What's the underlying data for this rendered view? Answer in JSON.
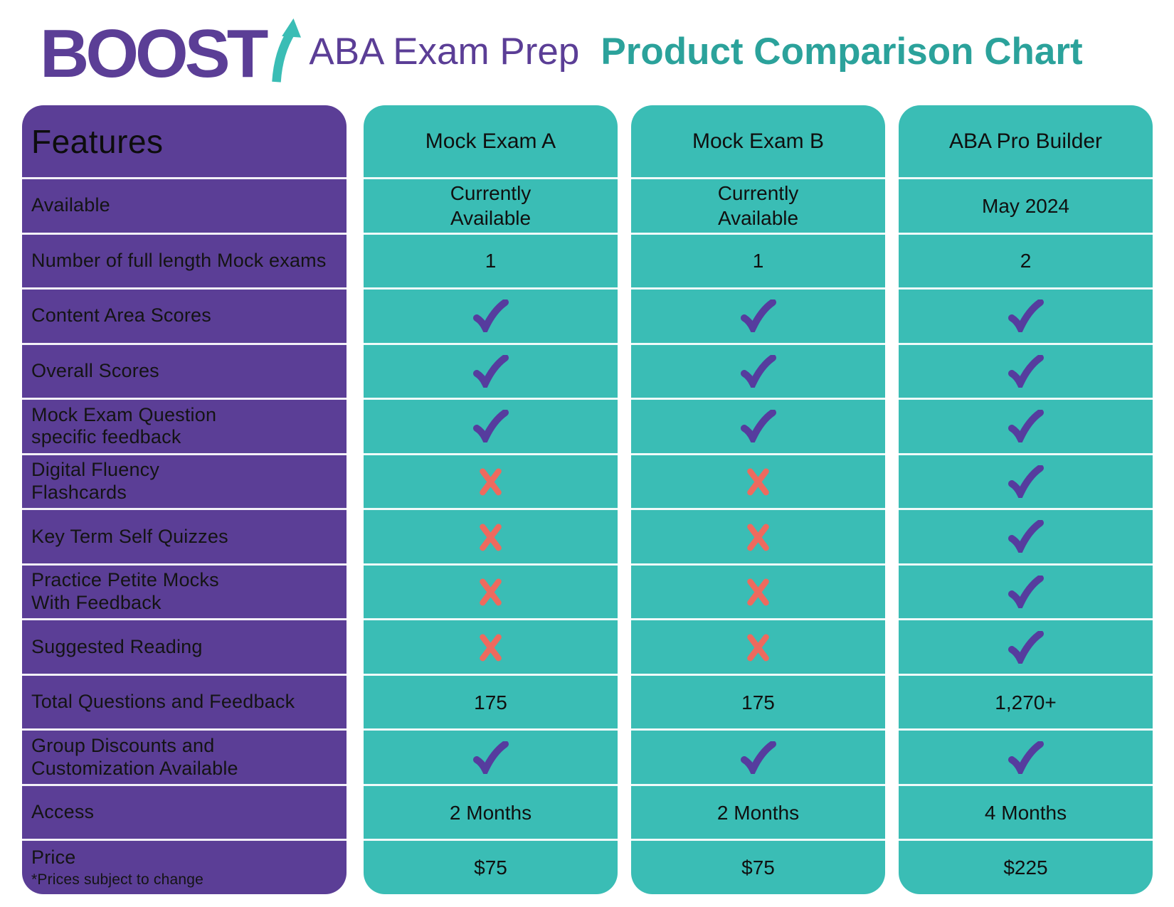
{
  "header": {
    "logo_text": "BOOST",
    "logo_arrow_icon": "up-arrow-icon",
    "subtitle": "ABA Exam Prep",
    "title": "Product Comparison Chart"
  },
  "colors": {
    "brand_purple": "#5b3e96",
    "brand_teal": "#3abdb5",
    "title_teal": "#2ba29b",
    "check_purple": "#563c9e",
    "cross_coral": "#ee6a5e",
    "text_black": "#141414"
  },
  "table": {
    "features_header": "Features",
    "products": [
      "Mock Exam A",
      "Mock Exam B",
      "ABA Pro Builder"
    ],
    "rows": [
      {
        "feature": "Available",
        "cells": [
          {
            "type": "text",
            "value": "Currently\nAvailable"
          },
          {
            "type": "text",
            "value": "Currently\nAvailable"
          },
          {
            "type": "text",
            "value": "May 2024"
          }
        ]
      },
      {
        "feature": "Number of full length Mock exams",
        "cells": [
          {
            "type": "text",
            "value": "1"
          },
          {
            "type": "text",
            "value": "1"
          },
          {
            "type": "text",
            "value": "2"
          }
        ]
      },
      {
        "feature": "Content Area Scores",
        "cells": [
          {
            "type": "check"
          },
          {
            "type": "check"
          },
          {
            "type": "check"
          }
        ]
      },
      {
        "feature": "Overall Scores",
        "cells": [
          {
            "type": "check"
          },
          {
            "type": "check"
          },
          {
            "type": "check"
          }
        ]
      },
      {
        "feature": "Mock Exam Question\nspecific feedback",
        "cells": [
          {
            "type": "check"
          },
          {
            "type": "check"
          },
          {
            "type": "check"
          }
        ]
      },
      {
        "feature": "Digital Fluency\nFlashcards",
        "cells": [
          {
            "type": "cross"
          },
          {
            "type": "cross"
          },
          {
            "type": "check"
          }
        ]
      },
      {
        "feature": "Key Term Self Quizzes",
        "cells": [
          {
            "type": "cross"
          },
          {
            "type": "cross"
          },
          {
            "type": "check"
          }
        ]
      },
      {
        "feature": "Practice Petite Mocks\nWith Feedback",
        "cells": [
          {
            "type": "cross"
          },
          {
            "type": "cross"
          },
          {
            "type": "check"
          }
        ]
      },
      {
        "feature": "Suggested Reading",
        "cells": [
          {
            "type": "cross"
          },
          {
            "type": "cross"
          },
          {
            "type": "check"
          }
        ]
      },
      {
        "feature": "Total Questions and Feedback",
        "cells": [
          {
            "type": "text",
            "value": "175"
          },
          {
            "type": "text",
            "value": "175"
          },
          {
            "type": "text",
            "value": "1,270+"
          }
        ]
      },
      {
        "feature": "Group Discounts and\nCustomization Available",
        "cells": [
          {
            "type": "check"
          },
          {
            "type": "check"
          },
          {
            "type": "check"
          }
        ]
      },
      {
        "feature": "Access",
        "cells": [
          {
            "type": "text",
            "value": "2 Months"
          },
          {
            "type": "text",
            "value": "2 Months"
          },
          {
            "type": "text",
            "value": "4 Months"
          }
        ]
      },
      {
        "feature": "Price",
        "note": "*Prices subject to change",
        "cells": [
          {
            "type": "text",
            "value": "$75"
          },
          {
            "type": "text",
            "value": "$75"
          },
          {
            "type": "text",
            "value": "$225"
          }
        ]
      }
    ]
  },
  "chart_data": {
    "type": "table",
    "title": "BOOST ABA Exam Prep Product Comparison Chart",
    "columns": [
      "Features",
      "Mock Exam A",
      "Mock Exam B",
      "ABA Pro Builder"
    ],
    "rows": [
      [
        "Available",
        "Currently Available",
        "Currently Available",
        "May 2024"
      ],
      [
        "Number of full length Mock exams",
        "1",
        "1",
        "2"
      ],
      [
        "Content Area Scores",
        "✓",
        "✓",
        "✓"
      ],
      [
        "Overall Scores",
        "✓",
        "✓",
        "✓"
      ],
      [
        "Mock Exam Question specific feedback",
        "✓",
        "✓",
        "✓"
      ],
      [
        "Digital Fluency Flashcards",
        "✗",
        "✗",
        "✓"
      ],
      [
        "Key Term Self Quizzes",
        "✗",
        "✗",
        "✓"
      ],
      [
        "Practice Petite Mocks With Feedback",
        "✗",
        "✗",
        "✓"
      ],
      [
        "Suggested Reading",
        "✗",
        "✗",
        "✓"
      ],
      [
        "Total Questions and Feedback",
        "175",
        "175",
        "1,270+"
      ],
      [
        "Group Discounts and Customization Available",
        "✓",
        "✓",
        "✓"
      ],
      [
        "Access",
        "2 Months",
        "2 Months",
        "4 Months"
      ],
      [
        "Price *Prices subject to change",
        "$75",
        "$75",
        "$225"
      ]
    ]
  }
}
